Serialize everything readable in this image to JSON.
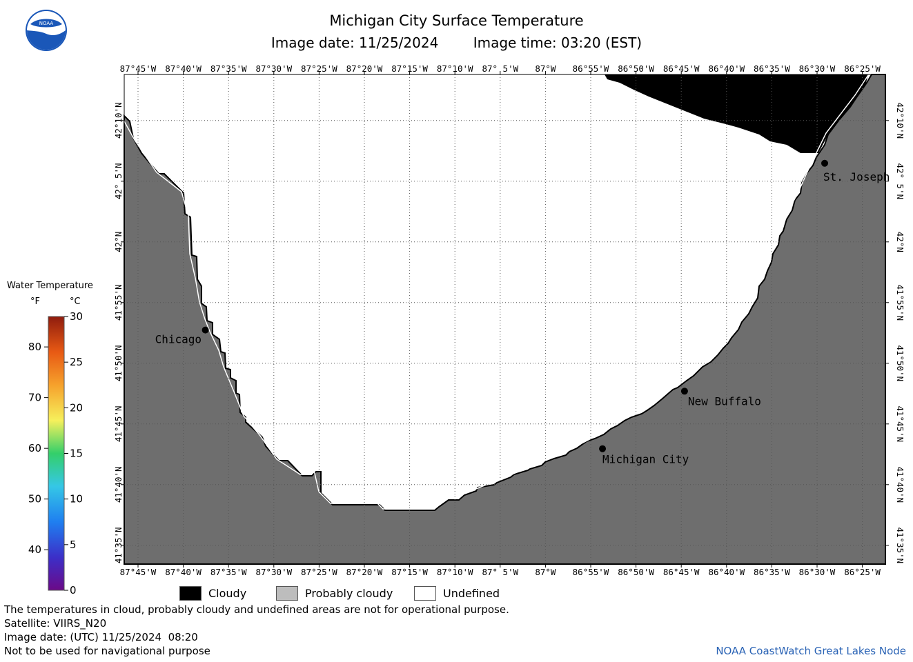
{
  "header": {
    "title": "Michigan City Surface Temperature",
    "image_date": "Image date: 11/25/2024",
    "image_time": "Image time: 03:20 (EST)",
    "logo_text": "NOAA"
  },
  "map": {
    "lon_labels": [
      "87°45'W",
      "87°40'W",
      "87°35'W",
      "87°30'W",
      "87°25'W",
      "87°20'W",
      "87°15'W",
      "87°10'W",
      "87° 5'W",
      "87°W",
      "86°55'W",
      "86°50'W",
      "86°45'W",
      "86°40'W",
      "86°35'W",
      "86°30'W",
      "86°25'W"
    ],
    "lat_labels": [
      "42°10'N",
      "42° 5'N",
      "42°N",
      "41°55'N",
      "41°50'N",
      "41°45'N",
      "41°40'N",
      "41°35'N"
    ],
    "cities": [
      {
        "name": "Chicago",
        "lon": -87.626,
        "lat": 41.879
      },
      {
        "name": "Michigan City",
        "lon": -86.895,
        "lat": 41.716
      },
      {
        "name": "New Buffalo",
        "lon": -86.744,
        "lat": 41.795
      },
      {
        "name": "St. Joseph",
        "lon": -86.486,
        "lat": 42.108
      }
    ],
    "colors": {
      "land": "#6e6e6e",
      "cloud": "#000000",
      "water_undefined": "#ffffff",
      "grid": "#555555"
    }
  },
  "legend": {
    "title": "Water Temperature",
    "unit_f": "°F",
    "unit_c": "°C",
    "f_ticks": [
      "40",
      "50",
      "60",
      "70",
      "80"
    ],
    "c_ticks": [
      "0",
      "5",
      "10",
      "15",
      "20",
      "25",
      "30"
    ],
    "scale_f_min": 32,
    "scale_f_max": 86
  },
  "key": [
    {
      "label": "Cloudy",
      "color": "#000000"
    },
    {
      "label": "Probably cloudy",
      "color": "#bdbdbd"
    },
    {
      "label": "Undefined",
      "color": "#ffffff"
    }
  ],
  "footer": {
    "disclaimer": "The temperatures in cloud, probably cloudy and undefined areas are not for operational purpose.",
    "satellite": "Satellite: VIIRS_N20",
    "utc_date": "Image date: (UTC) 11/25/2024  08:20",
    "nav_warning": "Not to be used for navigational purpose",
    "credit": "NOAA CoastWatch Great Lakes Node"
  }
}
